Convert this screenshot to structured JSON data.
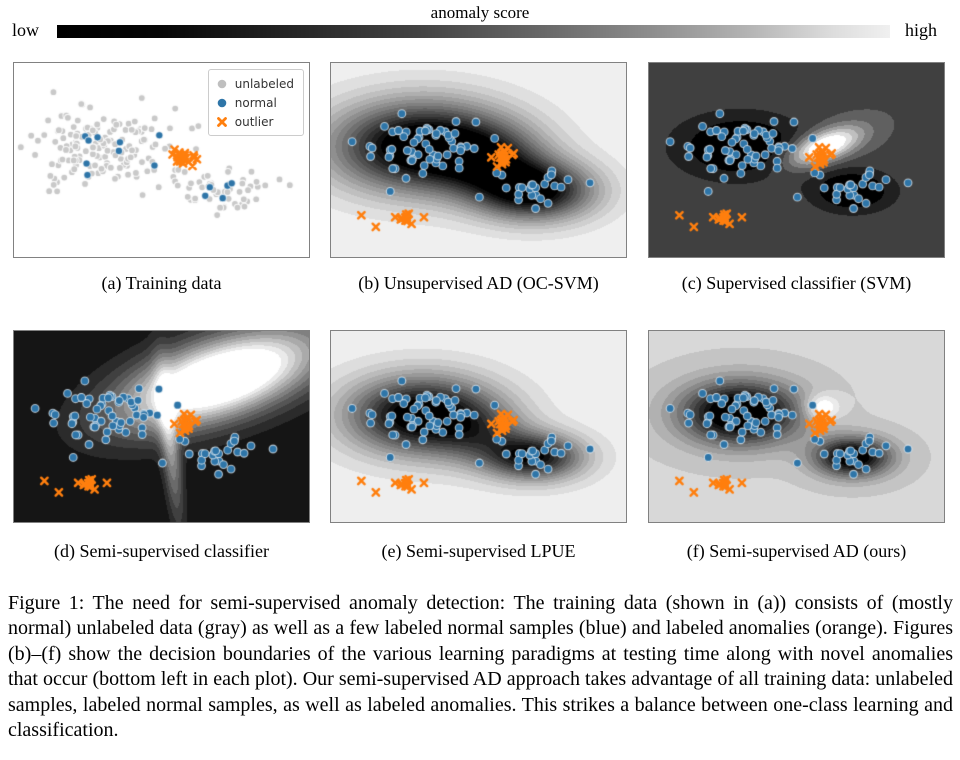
{
  "colorbar": {
    "title": "anomaly score",
    "low": "low",
    "high": "high",
    "stops": [
      {
        "p": 0,
        "c": "#000000"
      },
      {
        "p": 12,
        "c": "#060606"
      },
      {
        "p": 28,
        "c": "#252525"
      },
      {
        "p": 44,
        "c": "#444444"
      },
      {
        "p": 58,
        "c": "#676767"
      },
      {
        "p": 71,
        "c": "#8c8c8c"
      },
      {
        "p": 83,
        "c": "#b4b4b4"
      },
      {
        "p": 93,
        "c": "#dcdcdc"
      },
      {
        "p": 100,
        "c": "#f0f0f0"
      }
    ]
  },
  "panels": [
    {
      "id": "a",
      "caption": "(a) Training data"
    },
    {
      "id": "b",
      "caption": "(b) Unsupervised AD (OC-SVM)"
    },
    {
      "id": "c",
      "caption": "(c) Supervised classifier (SVM)"
    },
    {
      "id": "d",
      "caption": "(d) Semi-supervised classifier"
    },
    {
      "id": "e",
      "caption": "(e) Semi-supervised LPUE"
    },
    {
      "id": "f",
      "caption": "(f) Semi-supervised AD (ours)"
    }
  ],
  "legend": {
    "items": [
      {
        "label": "unlabeled",
        "marker": "dot",
        "color": "#bfbfbf"
      },
      {
        "label": "normal",
        "marker": "dot",
        "color": "#2e75a8"
      },
      {
        "label": "outlier",
        "marker": "x",
        "color": "#ff7f0e"
      }
    ]
  },
  "figure_caption": "Figure 1: The need for semi-supervised anomaly detection: The training data (shown in (a)) consists of (mostly normal) unlabeled data (gray) as well as a few labeled normal samples (blue) and labeled anomalies (orange). Figures (b)–(f) show the decision boundaries of the various learning paradigms at testing time along with novel anomalies that occur (bottom left in each plot). Our semi-supervised AD approach takes advantage of all training data: unlabeled samples, labeled normal samples, as well as labeled anomalies. This strikes a balance between one-class learning and classification.",
  "chart_data": {
    "type": "scatter+contour",
    "marker_colors": {
      "gray": "#c9c9c9",
      "blue": "#2e75a8",
      "orange": "#ff7f0e"
    },
    "anomaly_score_scale": {
      "low_color": "#000000",
      "high_color": "#f0f0f0"
    },
    "train_clusters": [
      {
        "name": "unlabeled-big",
        "marker": "dot",
        "color": "gray",
        "n": 155,
        "cx": 0.295,
        "cy": 0.435,
        "sx": 0.115,
        "sy": 0.1,
        "seed": 11,
        "r": 3.4
      },
      {
        "name": "unlabeled-small",
        "marker": "dot",
        "color": "gray",
        "n": 48,
        "cx": 0.695,
        "cy": 0.665,
        "sx": 0.068,
        "sy": 0.05,
        "seed": 12,
        "r": 3.4
      },
      {
        "name": "unlabeled-strays",
        "marker": "dot",
        "color": "gray",
        "points": [
          [
            0.625,
            0.325
          ],
          [
            0.69,
            0.33
          ],
          [
            0.9,
            0.6
          ],
          [
            0.935,
            0.63
          ],
          [
            0.805,
            0.56
          ]
        ],
        "r": 3.4
      },
      {
        "name": "normal-big",
        "marker": "dot",
        "color": "blue",
        "n": 9,
        "cx": 0.3,
        "cy": 0.45,
        "sx": 0.075,
        "sy": 0.058,
        "seed": 13,
        "r": 3.6
      },
      {
        "name": "normal-small",
        "marker": "dot",
        "color": "blue",
        "n": 6,
        "cx": 0.7,
        "cy": 0.66,
        "sx": 0.032,
        "sy": 0.028,
        "seed": 14,
        "r": 3.6
      },
      {
        "name": "outlier-labeled",
        "marker": "x",
        "color": "orange",
        "n": 18,
        "cx": 0.575,
        "cy": 0.49,
        "sx": 0.022,
        "sy": 0.034,
        "seed": 15,
        "r": 3.2
      }
    ],
    "test_clusters": [
      {
        "name": "normal-big",
        "marker": "dot",
        "color": "blue",
        "n": 64,
        "cx": 0.31,
        "cy": 0.43,
        "sx": 0.105,
        "sy": 0.088,
        "seed": 21,
        "r": 3.9
      },
      {
        "name": "normal-small",
        "marker": "dot",
        "color": "blue",
        "n": 26,
        "cx": 0.69,
        "cy": 0.66,
        "sx": 0.06,
        "sy": 0.045,
        "seed": 22,
        "r": 3.9
      },
      {
        "name": "outlier-labeled",
        "marker": "x",
        "color": "orange",
        "n": 18,
        "cx": 0.573,
        "cy": 0.485,
        "sx": 0.021,
        "sy": 0.033,
        "seed": 23,
        "r": 3.2
      },
      {
        "name": "novel-anomalies",
        "marker": "x",
        "color": "orange",
        "n": 11,
        "cx": 0.25,
        "cy": 0.805,
        "sx": 0.016,
        "sy": 0.018,
        "seed": 24,
        "r": 3.2
      },
      {
        "name": "novel-strays",
        "marker": "x",
        "color": "orange",
        "points": [
          [
            0.103,
            0.785
          ],
          [
            0.152,
            0.845
          ],
          [
            0.315,
            0.795
          ]
        ],
        "r": 3.2
      }
    ],
    "fields": {
      "b": {
        "bg": 0.96,
        "levels": 17,
        "blobs": [
          {
            "cx": 0.31,
            "cy": 0.43,
            "sx": 0.21,
            "sy": 0.16,
            "rot": 0,
            "amp": -1.15
          },
          {
            "cx": 0.69,
            "cy": 0.66,
            "sx": 0.14,
            "sy": 0.105,
            "rot": 0,
            "amp": -1.0
          },
          {
            "cx": 0.54,
            "cy": 0.5,
            "sx": 0.13,
            "sy": 0.12,
            "rot": 0,
            "amp": -0.45
          }
        ]
      },
      "c": {
        "bg": 0.29,
        "levels": 9,
        "blobs": [
          {
            "cx": 0.31,
            "cy": 0.43,
            "sx": 0.15,
            "sy": 0.115,
            "rot": 0,
            "amp": -0.43
          },
          {
            "cx": 0.69,
            "cy": 0.66,
            "sx": 0.095,
            "sy": 0.075,
            "rot": 0,
            "amp": -0.43
          },
          {
            "cx": 0.595,
            "cy": 0.43,
            "sx": 0.1,
            "sy": 0.05,
            "rot": -35,
            "amp": 0.95
          }
        ]
      },
      "d": {
        "bg": 0.05,
        "levels": 13,
        "blobs": [
          {
            "cx": 0.7,
            "cy": 0.25,
            "sx": 0.26,
            "sy": 0.13,
            "rot": -32,
            "amp": 1.35
          },
          {
            "cx": 0.53,
            "cy": 0.6,
            "sx": 0.022,
            "sy": 0.27,
            "rot": -4,
            "amp": 0.5
          }
        ]
      },
      "e": {
        "bg": 0.95,
        "levels": 16,
        "blobs": [
          {
            "cx": 0.31,
            "cy": 0.44,
            "sx": 0.175,
            "sy": 0.14,
            "rot": 0,
            "amp": -1.08
          },
          {
            "cx": 0.69,
            "cy": 0.66,
            "sx": 0.115,
            "sy": 0.085,
            "rot": 0,
            "amp": -0.9
          },
          {
            "cx": 0.51,
            "cy": 0.55,
            "sx": 0.11,
            "sy": 0.11,
            "rot": 0,
            "amp": -0.3
          }
        ]
      },
      "f": {
        "bg": 0.82,
        "levels": 14,
        "blobs": [
          {
            "cx": 0.31,
            "cy": 0.43,
            "sx": 0.14,
            "sy": 0.115,
            "rot": 0,
            "amp": -1.05
          },
          {
            "cx": 0.69,
            "cy": 0.66,
            "sx": 0.09,
            "sy": 0.072,
            "rot": 0,
            "amp": -0.95
          },
          {
            "cx": 0.585,
            "cy": 0.4,
            "sx": 0.042,
            "sy": 0.048,
            "rot": 0,
            "amp": 0.35
          }
        ]
      }
    }
  }
}
